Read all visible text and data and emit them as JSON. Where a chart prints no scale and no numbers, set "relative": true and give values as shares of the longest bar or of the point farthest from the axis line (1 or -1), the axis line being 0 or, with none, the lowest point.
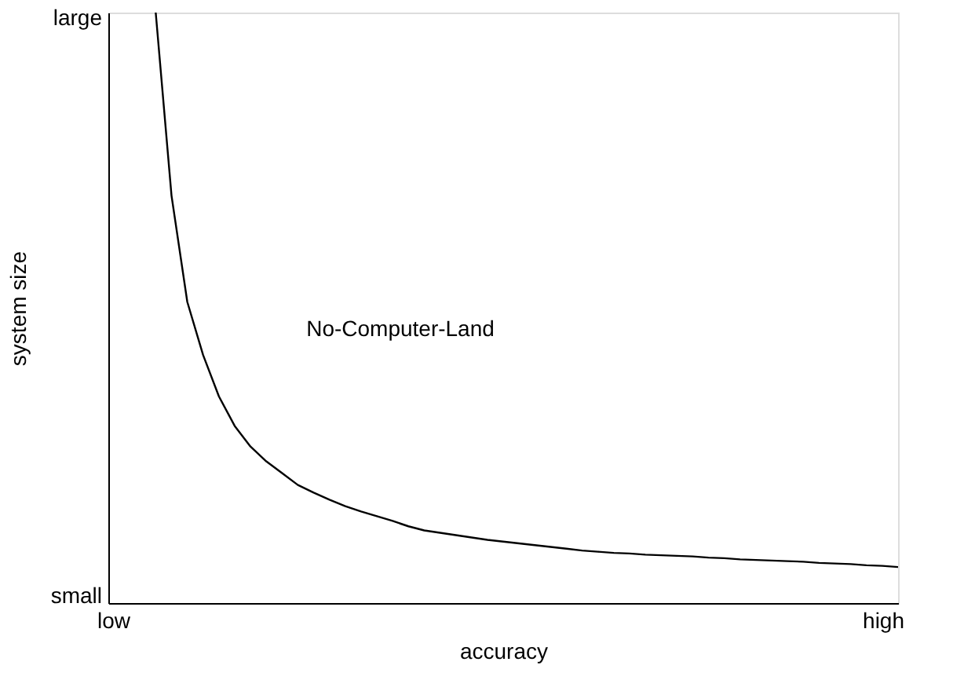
{
  "chart_data": {
    "type": "line",
    "xlabel": "accuracy",
    "ylabel": "system size",
    "relative": true,
    "categories": [
      null,
      null,
      null,
      null,
      null,
      null,
      null,
      null,
      null,
      null,
      null,
      null,
      null,
      null,
      null,
      null,
      null,
      null,
      null,
      null,
      null,
      null,
      null,
      null,
      null,
      null,
      null,
      null,
      null,
      null,
      null,
      null,
      null,
      null,
      null,
      null,
      null,
      null,
      null,
      null,
      null,
      null,
      null,
      null,
      null,
      null,
      null,
      null,
      null,
      null,
      null
    ],
    "series": [
      {
        "color": "#000000",
        "values": [
          null,
          null,
          null,
          1.0,
          0.69,
          0.51,
          0.42,
          0.35,
          0.3,
          0.265,
          0.24,
          0.22,
          0.2,
          0.187,
          0.175,
          0.164,
          0.155,
          0.147,
          0.139,
          0.13,
          0.123,
          0.119,
          0.115,
          0.111,
          0.107,
          0.104,
          0.101,
          0.098,
          0.095,
          0.092,
          0.089,
          0.087,
          0.085,
          0.084,
          0.082,
          0.081,
          0.08,
          0.079,
          0.077,
          0.076,
          0.074,
          0.073,
          0.072,
          0.071,
          0.07,
          0.068,
          0.067,
          0.066,
          0.064,
          0.063,
          0.061
        ]
      }
    ],
    "annotations": [
      "No-Computer-Land",
      "low",
      "high",
      "small",
      "large"
    ]
  }
}
